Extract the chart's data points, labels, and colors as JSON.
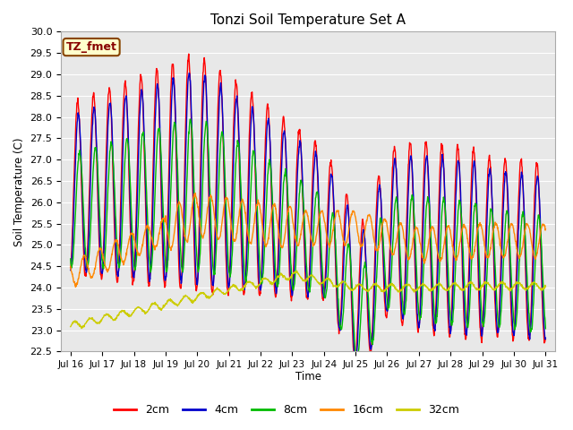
{
  "title": "Tonzi Soil Temperature Set A",
  "xlabel": "Time",
  "ylabel": "Soil Temperature (C)",
  "ylim": [
    22.5,
    30.0
  ],
  "yticks": [
    22.5,
    23.0,
    23.5,
    24.0,
    24.5,
    25.0,
    25.5,
    26.0,
    26.5,
    27.0,
    27.5,
    28.0,
    28.5,
    29.0,
    29.5,
    30.0
  ],
  "xtick_labels": [
    "Jul 16",
    "Jul 17",
    "Jul 18",
    "Jul 19",
    "Jul 20",
    "Jul 21",
    "Jul 22",
    "Jul 23",
    "Jul 24",
    "Jul 25",
    "Jul 26",
    "Jul 27",
    "Jul 28",
    "Jul 29",
    "Jul 30",
    "Jul 31"
  ],
  "line_colors": [
    "#ff0000",
    "#0000cc",
    "#00bb00",
    "#ff8800",
    "#cccc00"
  ],
  "line_labels": [
    "2cm",
    "4cm",
    "8cm",
    "16cm",
    "32cm"
  ],
  "annotation_text": "TZ_fmet",
  "annotation_bg": "#ffffcc",
  "annotation_border": "#884400",
  "plot_bg": "#e8e8e8",
  "fig_bg": "#ffffff",
  "grid_color": "#ffffff",
  "n_points": 1500,
  "total_days": 15
}
